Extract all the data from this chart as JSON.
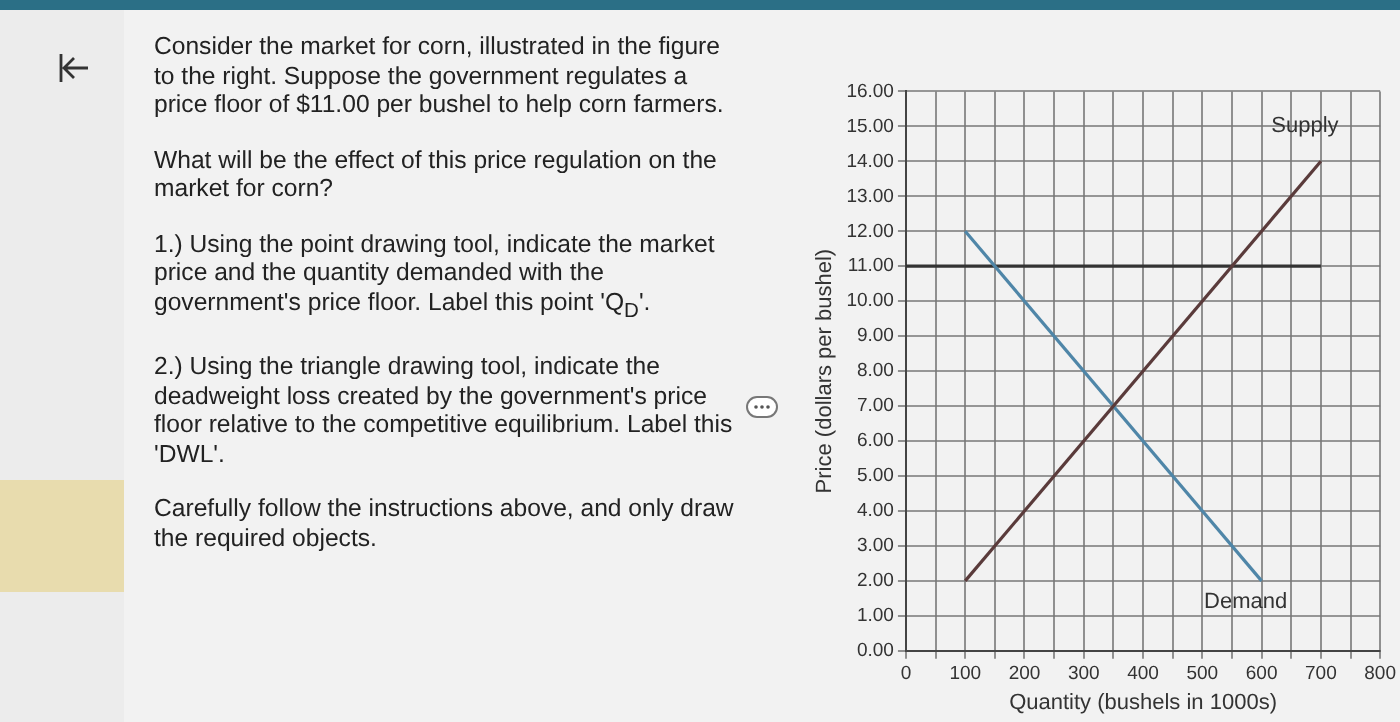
{
  "chart_data": {
    "type": "line",
    "xlabel": "Quantity (bushels in 1000s)",
    "ylabel": "Price (dollars per bushel)",
    "annotations": [
      "Consider the market for corn, illustrated in the figure to the right.  Suppose the government regulates a price floor of $11.00 per bushel to help corn farmers.",
      "What will be the effect of this price regulation on the market for corn?",
      "1.) Using the point drawing tool, indicate the market price and the quantity demanded with the government's price floor. Label this point 'Q$_{D}$'.",
      "2.) Using the triangle drawing tool, indicate the deadweight loss created by the government's price floor relative to the competitive equilibrium. Label this 'DWL'.",
      "Carefully follow the instructions above, and only draw the required objects."
    ],
    "series": [
      {
        "name": "Supply",
        "color": "#5a3b3b",
        "x": [
          100,
          700
        ],
        "values": [
          2,
          14
        ]
      },
      {
        "name": "Demand",
        "color": "#4f86a8",
        "x": [
          100,
          600
        ],
        "values": [
          12,
          2
        ]
      },
      {
        "color": "#333333",
        "x": [
          0,
          700
        ],
        "values": [
          11,
          11
        ]
      }
    ],
    "xlim": [
      0,
      800
    ],
    "ylim": [
      0,
      16
    ],
    "xticks": [
      0,
      {
        "value": 50,
        "label": null
      },
      100,
      {
        "value": 150,
        "label": null
      },
      200,
      {
        "value": 250,
        "label": null
      },
      300,
      {
        "value": 350,
        "label": null
      },
      400,
      {
        "value": 450,
        "label": null
      },
      500,
      {
        "value": 550,
        "label": null
      },
      600,
      {
        "value": 650,
        "label": null
      },
      700,
      {
        "value": 750,
        "label": null
      },
      800
    ],
    "yticks": [
      {
        "value": 0,
        "label": "0.00"
      },
      {
        "value": 1,
        "label": "1.00"
      },
      {
        "value": 2,
        "label": "2.00"
      },
      {
        "value": 3,
        "label": "3.00"
      },
      {
        "value": 4,
        "label": "4.00"
      },
      {
        "value": 5,
        "label": "5.00"
      },
      {
        "value": 6,
        "label": "6.00"
      },
      {
        "value": 7,
        "label": "7.00"
      },
      {
        "value": 8,
        "label": "8.00"
      },
      {
        "value": 9,
        "label": "9.00"
      },
      {
        "value": 10,
        "label": "10.00"
      },
      {
        "value": 11,
        "label": "11.00"
      },
      {
        "value": 12,
        "label": "12.00"
      },
      {
        "value": 13,
        "label": "13.00"
      },
      {
        "value": 14,
        "label": "14.00"
      },
      {
        "value": 15,
        "label": "15.00"
      },
      {
        "value": 16,
        "label": "16.00"
      }
    ],
    "grid": true,
    "legend": false,
    "marker": "none",
    "line_style": "solid"
  }
}
